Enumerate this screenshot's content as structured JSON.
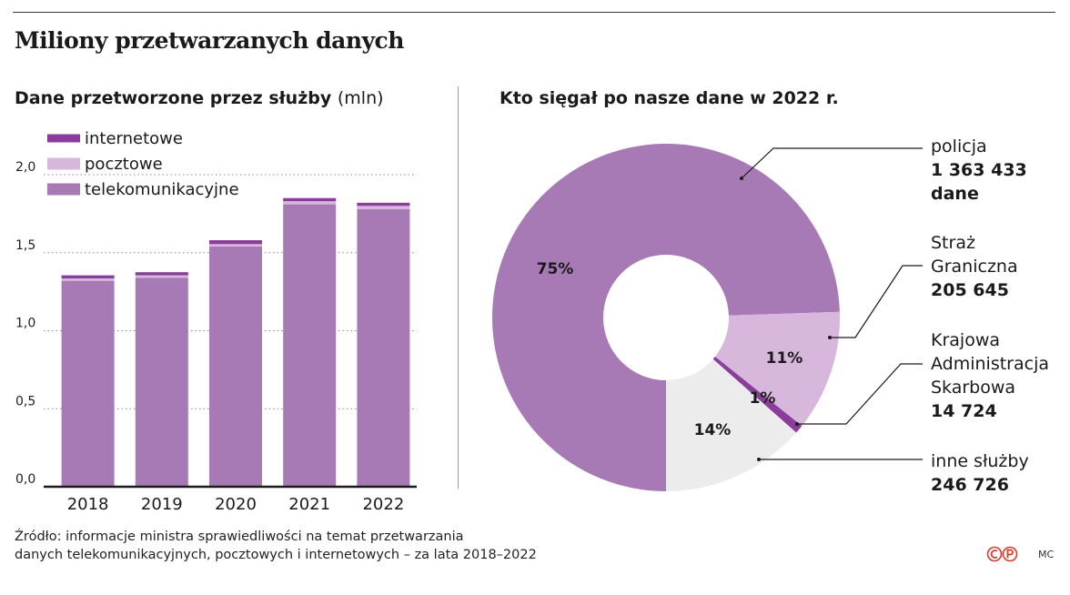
{
  "title": "Miliony przetwarzanych danych",
  "left_chart": {
    "title": "Dane przetworzone przez służby",
    "unit": "(mln)"
  },
  "right_chart": {
    "title": "Kto sięgał po nasze dane w 2022 r."
  },
  "source_lines": [
    "Źródło: informacje ministra sprawiedliwości na temat przetwarzania",
    "danych telekomunikacyjnych, pocztowych i internetowych – za lata 2018–2022"
  ],
  "author": "MC",
  "colors": {
    "telekomunikacyjne": "#a87ab5",
    "pocztowe": "#d7b8dc",
    "internetowe": "#8a3d9a",
    "inne": "#ececec",
    "axis": "#1a1a1a",
    "grid": "#888888",
    "logo": "#d93a2b"
  },
  "chart_data": [
    {
      "type": "bar",
      "stacked": true,
      "categories": [
        "2018",
        "2019",
        "2020",
        "2021",
        "2022"
      ],
      "series": [
        {
          "name": "telekomunikacyjne",
          "values": [
            1.32,
            1.34,
            1.54,
            1.81,
            1.78
          ]
        },
        {
          "name": "pocztowe",
          "values": [
            0.015,
            0.015,
            0.015,
            0.02,
            0.02
          ]
        },
        {
          "name": "internetowe",
          "values": [
            0.02,
            0.02,
            0.025,
            0.02,
            0.02
          ]
        }
      ],
      "legend_order": [
        "internetowe",
        "pocztowe",
        "telekomunikacyjne"
      ],
      "legend_position": "top-left",
      "ylim": [
        0,
        2.0
      ],
      "yticks": [
        "0,0",
        "0,5",
        "1,0",
        "1,5",
        "2,0"
      ],
      "grid": true
    },
    {
      "type": "pie",
      "donut": true,
      "slices": [
        {
          "key": "policja",
          "label_lines": [
            "policja"
          ],
          "value_lines": [
            "1 363 433",
            "dane"
          ],
          "value": 1363433,
          "percent_label": "75%"
        },
        {
          "key": "sg",
          "label_lines": [
            "Straż",
            "Graniczna"
          ],
          "value_lines": [
            "205 645"
          ],
          "value": 205645,
          "percent_label": "11%"
        },
        {
          "key": "kas",
          "label_lines": [
            "Krajowa",
            "Administracja",
            "Skarbowa"
          ],
          "value_lines": [
            "14 724"
          ],
          "value": 14724,
          "percent_label": "1%"
        },
        {
          "key": "inne",
          "label_lines": [
            "inne służby"
          ],
          "value_lines": [
            "246 726"
          ],
          "value": 246726,
          "percent_label": "14%"
        }
      ]
    }
  ]
}
